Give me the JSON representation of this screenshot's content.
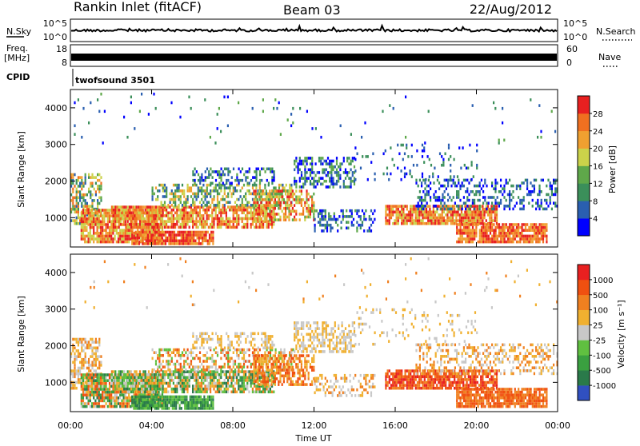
{
  "header": {
    "station": "Rankin Inlet (fitACF)",
    "beam": "Beam 03",
    "date": "22/Aug/2012"
  },
  "sky_panel": {
    "left_label": "N.Sky",
    "right_label": "N.Search",
    "left_ticks": [
      "10^5",
      "10^0"
    ],
    "right_ticks": [
      "10^5",
      "10^0"
    ]
  },
  "freq_panel": {
    "left_label_top": "Freq.",
    "left_label_bottom": "[MHz]",
    "right_label": "Nave",
    "left_ticks": [
      "18",
      "8"
    ],
    "right_ticks": [
      "60",
      "0"
    ]
  },
  "cpid": {
    "label": "CPID",
    "program": "twofsound 3501"
  },
  "colors": {
    "power_scale": [
      "#0000ff",
      "#2a5fb0",
      "#3b8f5a",
      "#5fa84a",
      "#cbd24a",
      "#f0a030",
      "#f07020",
      "#e82020"
    ],
    "velocity_scale": [
      "#3050c0",
      "#2a7a4a",
      "#3aa040",
      "#60c040",
      "#c8c8c8",
      "#f0b030",
      "#f08020",
      "#f05010",
      "#e82020"
    ]
  },
  "chart_data": [
    {
      "type": "heatmap",
      "name": "power",
      "ylabel": "Slant Range [km]",
      "ylim": [
        200,
        4500
      ],
      "yticks": [
        "1000",
        "2000",
        "3000",
        "4000"
      ],
      "xticks": [
        "00:00",
        "04:00",
        "08:00",
        "12:00",
        "16:00",
        "20:00",
        "00:00"
      ],
      "colorbar": {
        "label": "Power [dB]",
        "ticks": [
          "4",
          "8",
          "12",
          "16",
          "20",
          "24",
          "28"
        ],
        "range": [
          0,
          32
        ]
      }
    },
    {
      "type": "heatmap",
      "name": "velocity",
      "ylabel": "Slant Range [km]",
      "xlabel": "Time UT",
      "ylim": [
        200,
        4500
      ],
      "yticks": [
        "1000",
        "2000",
        "3000",
        "4000"
      ],
      "xticks": [
        "00:00",
        "04:00",
        "08:00",
        "12:00",
        "16:00",
        "20:00",
        "00:00"
      ],
      "colorbar": {
        "label": "Velocity [m s⁻¹]",
        "ticks": [
          "1000",
          "500",
          "100",
          "25",
          "-25",
          "-100",
          "-500",
          "-1000"
        ]
      }
    }
  ]
}
